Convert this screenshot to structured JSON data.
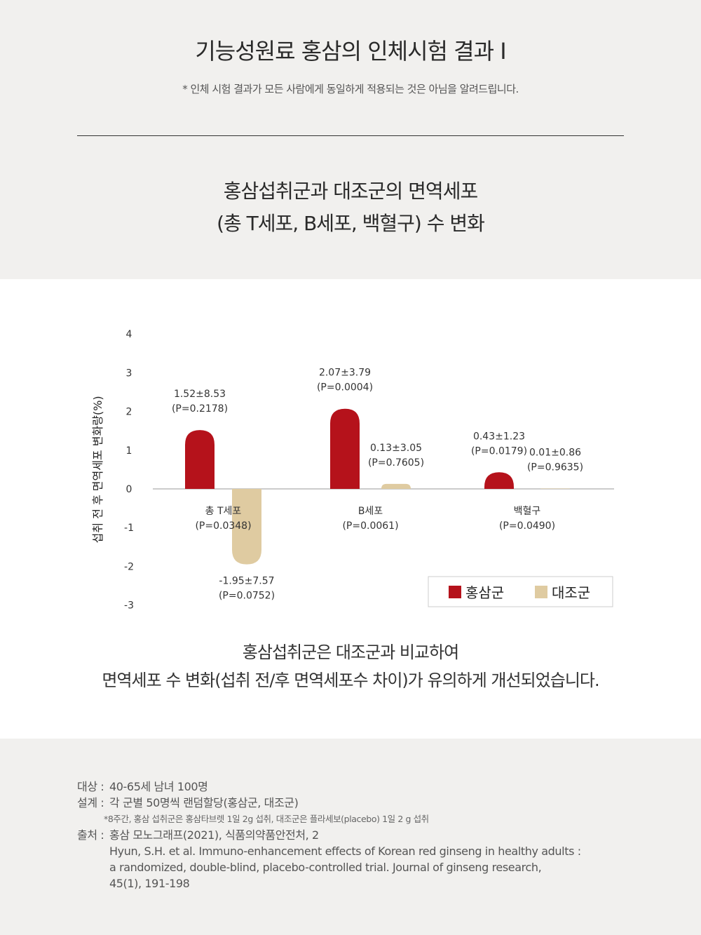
{
  "header": {
    "title": "기능성원료 홍삼의 인체시험 결과 I",
    "note": "* 인체 시험 결과가 모든 사람에게 동일하게 적용되는 것은 아님을 알려드립니다."
  },
  "section": {
    "title_line1": "홍삼섭취군과 대조군의 면역세포",
    "title_line2": "(총 T세포, B세포, 백혈구) 수 변화"
  },
  "chart_data": {
    "type": "bar",
    "ylabel": "섭취 전 후 면역세포 변화량(%)",
    "ylim": [
      -3,
      4
    ],
    "yticks": [
      "4",
      "3",
      "2",
      "1",
      "0",
      "-1",
      "-2",
      "-3"
    ],
    "categories": [
      {
        "name": "총 T세포",
        "p": "(P=0.0348)"
      },
      {
        "name": "B세포",
        "p": "(P=0.0061)"
      },
      {
        "name": "백혈구",
        "p": "(P=0.0490)"
      }
    ],
    "series": [
      {
        "name": "홍삼군",
        "color": "#b5121b",
        "values": [
          1.52,
          2.07,
          0.43
        ],
        "labels": [
          "1.52±8.53",
          "2.07±3.79",
          "0.43±1.23"
        ],
        "pvalues": [
          "(P=0.2178)",
          "(P=0.0004)",
          "(P=0.0179)"
        ]
      },
      {
        "name": "대조군",
        "color": "#dfcba1",
        "values": [
          -1.95,
          0.13,
          0.01
        ],
        "labels": [
          "-1.95±7.57",
          "0.13±3.05",
          "0.01±0.86"
        ],
        "pvalues": [
          "(P=0.0752)",
          "(P=0.7605)",
          "(P=0.9635)"
        ]
      }
    ],
    "legend": "bottom-right"
  },
  "conclusion": {
    "line1": "홍삼섭취군은 대조군과 비교하여",
    "line2": "면역세포 수 변화(섭취 전/후 면역세포수 차이)가 유의하게 개선되었습니다."
  },
  "footnotes": {
    "subject_label": "대상 :",
    "subject": "40-65세 남녀 100명",
    "design_label": "설계 :",
    "design": "각 군별 50명씩 랜덤할당(홍삼군, 대조군)",
    "design_note": "*8주간, 홍삼 섭취군은 홍삼타브렛 1일 2g 섭취, 대조군은 플라세보(placebo) 1일 2 g 섭취",
    "source_label": "출처 :",
    "source": "홍삼 모노그래프(2021), 식품의약품안전처, 2",
    "ref_line1": "Hyun, S.H. et al. Immuno-enhancement effects of Korean red ginseng in healthy adults :",
    "ref_line2": "a randomized, double-blind, placebo-controlled trial. Journal of ginseng research,",
    "ref_line3": "45(1), 191-198"
  }
}
